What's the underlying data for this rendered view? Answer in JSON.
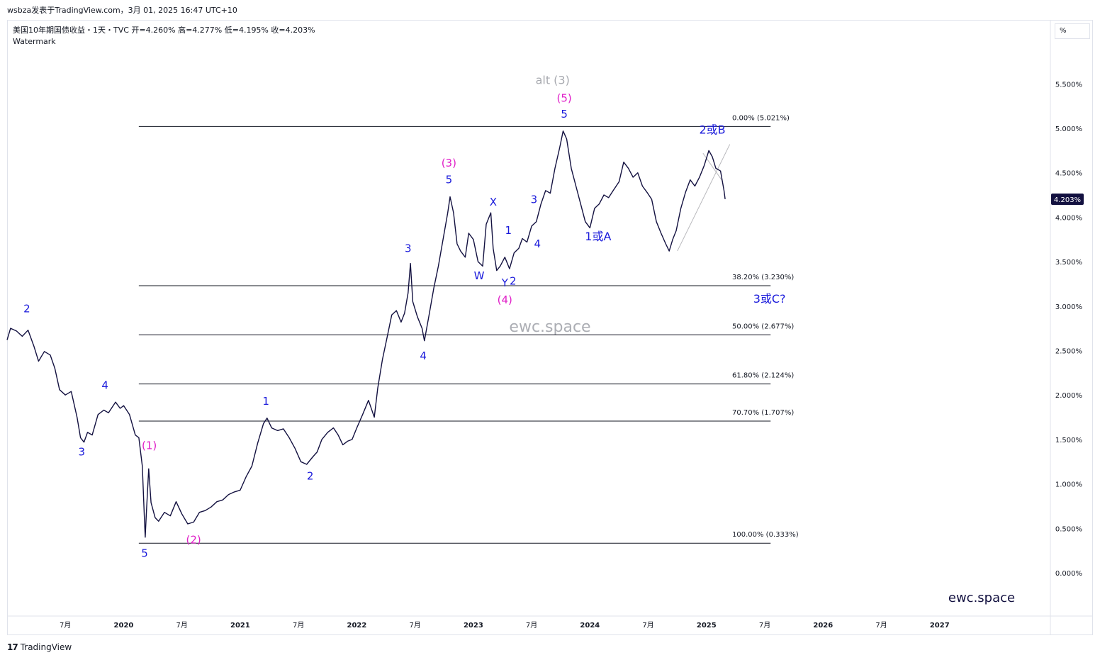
{
  "header": {
    "top_line": "wsbza发表于TradingView.com，3月 01, 2025 16:47 UTC+10",
    "symbol_line": "美国10年期国债收益・1天・TVC  开=4.260%  高=4.277%  低=4.195%  收=4.203%",
    "watermark_label": "Watermark",
    "unit": "%"
  },
  "footer": {
    "logo_text": "TradingView"
  },
  "chart_data": {
    "type": "line",
    "title": "美国10年期国债收益",
    "interval": "1天",
    "source": "TVC",
    "ohlc": {
      "open": "4.260%",
      "high": "4.277%",
      "low": "4.195%",
      "close": "4.203%"
    },
    "last_price_label": "4.203%",
    "y_unit": "%",
    "ylim": [
      -0.45,
      6.0
    ],
    "y_ticks": [
      0.0,
      0.5,
      1.0,
      1.5,
      2.0,
      2.5,
      3.0,
      3.5,
      4.0,
      4.5,
      5.0,
      5.5
    ],
    "y_tick_labels": [
      "0.000%",
      "0.500%",
      "1.000%",
      "1.500%",
      "2.000%",
      "2.500%",
      "3.000%",
      "3.500%",
      "4.000%",
      "4.500%",
      "5.000%",
      "5.500%"
    ],
    "x_range": [
      2019.0,
      2027.95
    ],
    "x_ticks": [
      {
        "x": 2019.5,
        "label": "7月"
      },
      {
        "x": 2020.0,
        "label": "2020"
      },
      {
        "x": 2020.5,
        "label": "7月"
      },
      {
        "x": 2021.0,
        "label": "2021"
      },
      {
        "x": 2021.5,
        "label": "7月"
      },
      {
        "x": 2022.0,
        "label": "2022"
      },
      {
        "x": 2022.5,
        "label": "7月"
      },
      {
        "x": 2023.0,
        "label": "2023"
      },
      {
        "x": 2023.5,
        "label": "7月"
      },
      {
        "x": 2024.0,
        "label": "2024"
      },
      {
        "x": 2024.5,
        "label": "7月"
      },
      {
        "x": 2025.0,
        "label": "2025"
      },
      {
        "x": 2025.5,
        "label": "7月"
      },
      {
        "x": 2026.0,
        "label": "2026"
      },
      {
        "x": 2026.5,
        "label": "7月"
      },
      {
        "x": 2027.0,
        "label": "2027"
      }
    ],
    "series": [
      {
        "color": "#131140",
        "points": [
          [
            2019.0,
            2.62
          ],
          [
            2019.03,
            2.75
          ],
          [
            2019.08,
            2.72
          ],
          [
            2019.13,
            2.66
          ],
          [
            2019.18,
            2.73
          ],
          [
            2019.23,
            2.55
          ],
          [
            2019.27,
            2.38
          ],
          [
            2019.32,
            2.49
          ],
          [
            2019.37,
            2.45
          ],
          [
            2019.41,
            2.3
          ],
          [
            2019.45,
            2.06
          ],
          [
            2019.5,
            2.0
          ],
          [
            2019.55,
            2.04
          ],
          [
            2019.6,
            1.75
          ],
          [
            2019.63,
            1.52
          ],
          [
            2019.66,
            1.47
          ],
          [
            2019.69,
            1.58
          ],
          [
            2019.73,
            1.55
          ],
          [
            2019.78,
            1.78
          ],
          [
            2019.83,
            1.83
          ],
          [
            2019.87,
            1.8
          ],
          [
            2019.93,
            1.92
          ],
          [
            2019.97,
            1.85
          ],
          [
            2020.0,
            1.88
          ],
          [
            2020.05,
            1.78
          ],
          [
            2020.1,
            1.55
          ],
          [
            2020.13,
            1.52
          ],
          [
            2020.16,
            1.2
          ],
          [
            2020.18,
            0.54
          ],
          [
            2020.185,
            0.4
          ],
          [
            2020.195,
            0.67
          ],
          [
            2020.215,
            1.17
          ],
          [
            2020.235,
            0.79
          ],
          [
            2020.27,
            0.62
          ],
          [
            2020.3,
            0.58
          ],
          [
            2020.35,
            0.68
          ],
          [
            2020.4,
            0.64
          ],
          [
            2020.45,
            0.8
          ],
          [
            2020.5,
            0.66
          ],
          [
            2020.55,
            0.55
          ],
          [
            2020.6,
            0.57
          ],
          [
            2020.65,
            0.68
          ],
          [
            2020.7,
            0.7
          ],
          [
            2020.75,
            0.74
          ],
          [
            2020.8,
            0.8
          ],
          [
            2020.85,
            0.82
          ],
          [
            2020.9,
            0.88
          ],
          [
            2020.95,
            0.91
          ],
          [
            2021.0,
            0.93
          ],
          [
            2021.05,
            1.08
          ],
          [
            2021.1,
            1.2
          ],
          [
            2021.15,
            1.46
          ],
          [
            2021.2,
            1.68
          ],
          [
            2021.23,
            1.74
          ],
          [
            2021.27,
            1.63
          ],
          [
            2021.32,
            1.6
          ],
          [
            2021.37,
            1.62
          ],
          [
            2021.42,
            1.52
          ],
          [
            2021.47,
            1.4
          ],
          [
            2021.52,
            1.25
          ],
          [
            2021.57,
            1.22
          ],
          [
            2021.62,
            1.3
          ],
          [
            2021.66,
            1.36
          ],
          [
            2021.7,
            1.5
          ],
          [
            2021.75,
            1.58
          ],
          [
            2021.8,
            1.63
          ],
          [
            2021.84,
            1.55
          ],
          [
            2021.88,
            1.44
          ],
          [
            2021.92,
            1.48
          ],
          [
            2021.96,
            1.5
          ],
          [
            2022.0,
            1.63
          ],
          [
            2022.05,
            1.78
          ],
          [
            2022.1,
            1.94
          ],
          [
            2022.15,
            1.75
          ],
          [
            2022.18,
            2.08
          ],
          [
            2022.22,
            2.4
          ],
          [
            2022.26,
            2.65
          ],
          [
            2022.3,
            2.9
          ],
          [
            2022.34,
            2.95
          ],
          [
            2022.38,
            2.82
          ],
          [
            2022.41,
            2.92
          ],
          [
            2022.44,
            3.15
          ],
          [
            2022.46,
            3.48
          ],
          [
            2022.48,
            3.05
          ],
          [
            2022.52,
            2.88
          ],
          [
            2022.56,
            2.75
          ],
          [
            2022.58,
            2.61
          ],
          [
            2022.62,
            2.9
          ],
          [
            2022.66,
            3.2
          ],
          [
            2022.7,
            3.45
          ],
          [
            2022.74,
            3.75
          ],
          [
            2022.78,
            4.05
          ],
          [
            2022.8,
            4.23
          ],
          [
            2022.83,
            4.05
          ],
          [
            2022.86,
            3.7
          ],
          [
            2022.89,
            3.62
          ],
          [
            2022.93,
            3.55
          ],
          [
            2022.96,
            3.82
          ],
          [
            2023.0,
            3.75
          ],
          [
            2023.04,
            3.5
          ],
          [
            2023.08,
            3.45
          ],
          [
            2023.11,
            3.92
          ],
          [
            2023.15,
            4.05
          ],
          [
            2023.17,
            3.65
          ],
          [
            2023.2,
            3.4
          ],
          [
            2023.23,
            3.45
          ],
          [
            2023.27,
            3.55
          ],
          [
            2023.31,
            3.42
          ],
          [
            2023.35,
            3.6
          ],
          [
            2023.39,
            3.65
          ],
          [
            2023.42,
            3.76
          ],
          [
            2023.46,
            3.72
          ],
          [
            2023.5,
            3.9
          ],
          [
            2023.54,
            3.95
          ],
          [
            2023.58,
            4.15
          ],
          [
            2023.62,
            4.3
          ],
          [
            2023.66,
            4.27
          ],
          [
            2023.7,
            4.55
          ],
          [
            2023.74,
            4.78
          ],
          [
            2023.77,
            4.97
          ],
          [
            2023.8,
            4.88
          ],
          [
            2023.84,
            4.55
          ],
          [
            2023.88,
            4.35
          ],
          [
            2023.92,
            4.15
          ],
          [
            2023.96,
            3.95
          ],
          [
            2024.0,
            3.88
          ],
          [
            2024.04,
            4.1
          ],
          [
            2024.08,
            4.15
          ],
          [
            2024.12,
            4.25
          ],
          [
            2024.16,
            4.22
          ],
          [
            2024.2,
            4.3
          ],
          [
            2024.25,
            4.4
          ],
          [
            2024.29,
            4.62
          ],
          [
            2024.33,
            4.55
          ],
          [
            2024.37,
            4.45
          ],
          [
            2024.41,
            4.5
          ],
          [
            2024.45,
            4.35
          ],
          [
            2024.49,
            4.28
          ],
          [
            2024.53,
            4.2
          ],
          [
            2024.57,
            3.95
          ],
          [
            2024.61,
            3.82
          ],
          [
            2024.65,
            3.7
          ],
          [
            2024.68,
            3.62
          ],
          [
            2024.71,
            3.75
          ],
          [
            2024.74,
            3.85
          ],
          [
            2024.78,
            4.1
          ],
          [
            2024.82,
            4.28
          ],
          [
            2024.86,
            4.42
          ],
          [
            2024.9,
            4.35
          ],
          [
            2024.94,
            4.45
          ],
          [
            2024.98,
            4.58
          ],
          [
            2025.02,
            4.75
          ],
          [
            2025.05,
            4.68
          ],
          [
            2025.08,
            4.55
          ],
          [
            2025.12,
            4.52
          ],
          [
            2025.15,
            4.3
          ],
          [
            2025.16,
            4.203
          ]
        ]
      }
    ],
    "fibonacci": [
      {
        "level": "0.00%",
        "value": 5.021,
        "label": "0.00% (5.021%)"
      },
      {
        "level": "38.20%",
        "value": 3.23,
        "label": "38.20% (3.230%)"
      },
      {
        "level": "50.00%",
        "value": 2.677,
        "label": "50.00% (2.677%)"
      },
      {
        "level": "61.80%",
        "value": 2.124,
        "label": "61.80% (2.124%)"
      },
      {
        "level": "70.70%",
        "value": 1.707,
        "label": "70.70% (1.707%)"
      },
      {
        "level": "100.00%",
        "value": 0.333,
        "label": "100.00% (0.333%)"
      }
    ],
    "fib_x_range": [
      2020.13,
      2025.55
    ],
    "annotations": [
      {
        "text": "2",
        "x": 2019.17,
        "y": 2.93,
        "color": "#1a1adb"
      },
      {
        "text": "3",
        "x": 2019.64,
        "y": 1.32,
        "color": "#1a1adb"
      },
      {
        "text": "4",
        "x": 2019.84,
        "y": 2.07,
        "color": "#1a1adb"
      },
      {
        "text": "5",
        "x": 2020.18,
        "y": 0.18,
        "color": "#1a1adb"
      },
      {
        "text": "(1)",
        "x": 2020.22,
        "y": 1.39,
        "color": "#e020c8"
      },
      {
        "text": "(2)",
        "x": 2020.6,
        "y": 0.33,
        "color": "#e020c8"
      },
      {
        "text": "1",
        "x": 2021.22,
        "y": 1.89,
        "color": "#1a1adb"
      },
      {
        "text": "2",
        "x": 2021.6,
        "y": 1.05,
        "color": "#1a1adb"
      },
      {
        "text": "3",
        "x": 2022.44,
        "y": 3.61,
        "color": "#1a1adb"
      },
      {
        "text": "4",
        "x": 2022.57,
        "y": 2.4,
        "color": "#1a1adb"
      },
      {
        "text": "5",
        "x": 2022.79,
        "y": 4.38,
        "color": "#1a1adb"
      },
      {
        "text": "(3)",
        "x": 2022.79,
        "y": 4.57,
        "color": "#e020c8"
      },
      {
        "text": "W",
        "x": 2023.05,
        "y": 3.3,
        "color": "#1a1adb"
      },
      {
        "text": "X",
        "x": 2023.17,
        "y": 4.13,
        "color": "#1a1adb"
      },
      {
        "text": "Y",
        "x": 2023.27,
        "y": 3.22,
        "color": "#1a1adb"
      },
      {
        "text": "2",
        "x": 2023.34,
        "y": 3.24,
        "color": "#1a1adb"
      },
      {
        "text": "(4)",
        "x": 2023.27,
        "y": 3.03,
        "color": "#e020c8"
      },
      {
        "text": "1",
        "x": 2023.3,
        "y": 3.81,
        "color": "#1a1adb"
      },
      {
        "text": "3",
        "x": 2023.52,
        "y": 4.16,
        "color": "#1a1adb"
      },
      {
        "text": "4",
        "x": 2023.55,
        "y": 3.66,
        "color": "#1a1adb"
      },
      {
        "text": "5",
        "x": 2023.78,
        "y": 5.12,
        "color": "#1a1adb"
      },
      {
        "text": "(5)",
        "x": 2023.78,
        "y": 5.3,
        "color": "#e020c8"
      },
      {
        "text": "alt (3)",
        "x": 2023.68,
        "y": 5.5,
        "color": "#a8aab0",
        "size": 16
      },
      {
        "text": "1或A",
        "x": 2024.07,
        "y": 3.74,
        "color": "#1a1adb",
        "size": 16
      },
      {
        "text": "2或B",
        "x": 2025.05,
        "y": 4.94,
        "color": "#1a1adb",
        "size": 16
      },
      {
        "text": "3或C?",
        "x": 2025.54,
        "y": 3.04,
        "color": "#1a1adb",
        "size": 16
      }
    ],
    "trendlines": [
      {
        "from": [
          2024.75,
          3.62
        ],
        "to": [
          2025.2,
          4.82
        ],
        "color": "#b8b8bc"
      },
      {
        "from": [
          2024.97,
          4.72
        ],
        "to": [
          2025.14,
          4.4
        ],
        "color": "#b8b8bc"
      }
    ],
    "watermark_center": "ewc.space",
    "watermark_corner": "ewc.space"
  }
}
